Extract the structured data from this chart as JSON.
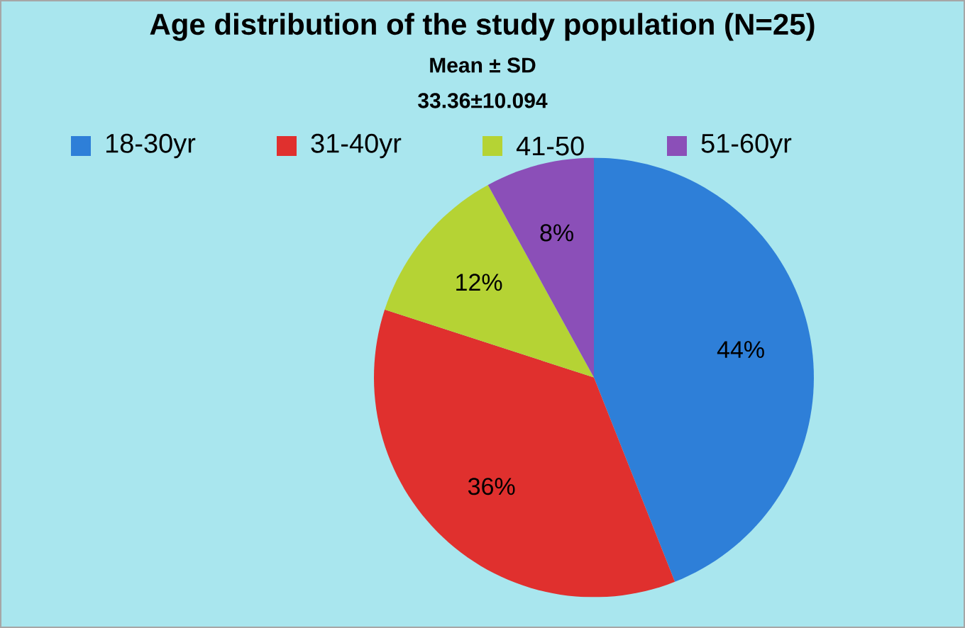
{
  "chart_data": {
    "type": "pie",
    "title": "Age distribution of the study population (N=25)",
    "subtitle": "Mean ± SD",
    "annotations": [
      "33.36±10.094"
    ],
    "categories": [
      "18-30yr",
      "31-40yr",
      "41-50",
      "51-60yr"
    ],
    "values": [
      44,
      36,
      12,
      8
    ],
    "value_labels": [
      "44%",
      "36%",
      "12%",
      "8%"
    ],
    "colors": [
      "#2e7fd8",
      "#e0302e",
      "#b5d334",
      "#8b4fb8"
    ],
    "legend": "top"
  }
}
